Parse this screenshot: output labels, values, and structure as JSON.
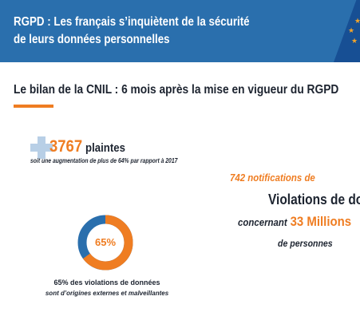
{
  "banner": {
    "title_line1": "RGPD : Les français s’inquiètent de la sécurité",
    "title_line2": "de leurs données personnelles"
  },
  "section": {
    "subtitle": "Le bilan de la CNIL : 6 mois après la mise en vigueur du RGPD"
  },
  "complaints": {
    "value": "3767",
    "label": "plaintes",
    "note": "soit une augmentation de plus de 64% par rapport à 2017"
  },
  "notifications": {
    "count_line": "742 notifications de",
    "heading": "Violations de do",
    "concerning": "concernant",
    "millions": "33 Millions",
    "persons": "de personnes"
  },
  "external": {
    "percent_value": 0.65,
    "percent_label": "65%",
    "caption_line1": "65% des violations de données",
    "caption_line2": "sont d’origines externes et malveillantes"
  },
  "colors": {
    "banner": "#2a6fad",
    "flag": "#174f94",
    "accent": "#ef7d22",
    "donut_rest": "#2a6fad",
    "plus_icon": "#b8cfe6",
    "text": "#1d2430"
  },
  "icons": {
    "plus": "plus-icon",
    "flag": "eu-flag-icon",
    "star": "star-icon"
  }
}
